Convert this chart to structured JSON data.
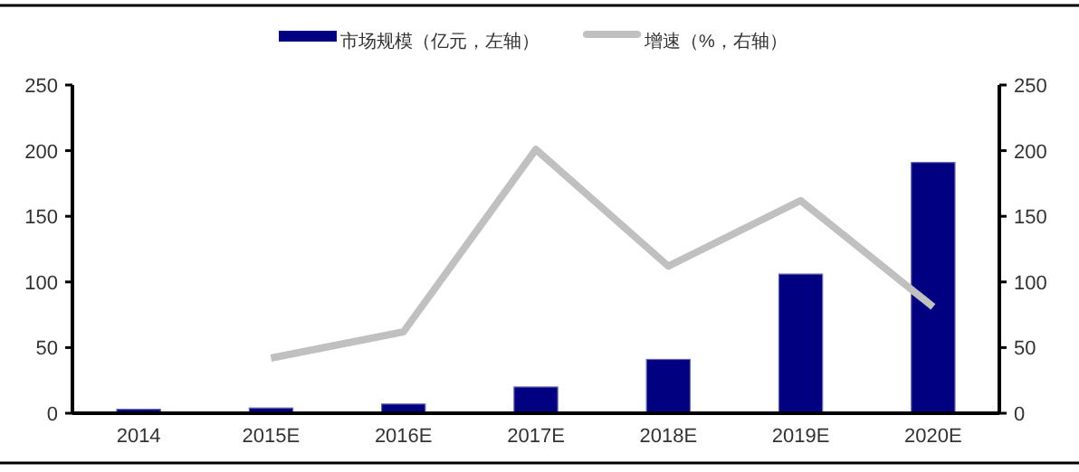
{
  "chart_data": {
    "type": "bar",
    "categories": [
      "2014",
      "2015E",
      "2016E",
      "2017E",
      "2018E",
      "2019E",
      "2020E"
    ],
    "series": [
      {
        "name": "市场规模（亿元，左轴）",
        "color": "#000080",
        "values": [
          3,
          4,
          7,
          20,
          41,
          106,
          191
        ]
      },
      {
        "name": "增速（%，右轴）",
        "type": "line",
        "axis": "y2",
        "color": "#c0c0c0",
        "values": [
          null,
          42,
          62,
          201,
          112,
          162,
          81
        ]
      }
    ],
    "ylim": [
      0,
      250
    ],
    "yticks": [
      0,
      50,
      100,
      150,
      200,
      250
    ],
    "y2lim": [
      0,
      250
    ],
    "y2ticks": [
      0,
      50,
      100,
      150,
      200,
      250
    ],
    "legend": "top",
    "grid": false,
    "marker": "none",
    "line_style": "solid"
  }
}
